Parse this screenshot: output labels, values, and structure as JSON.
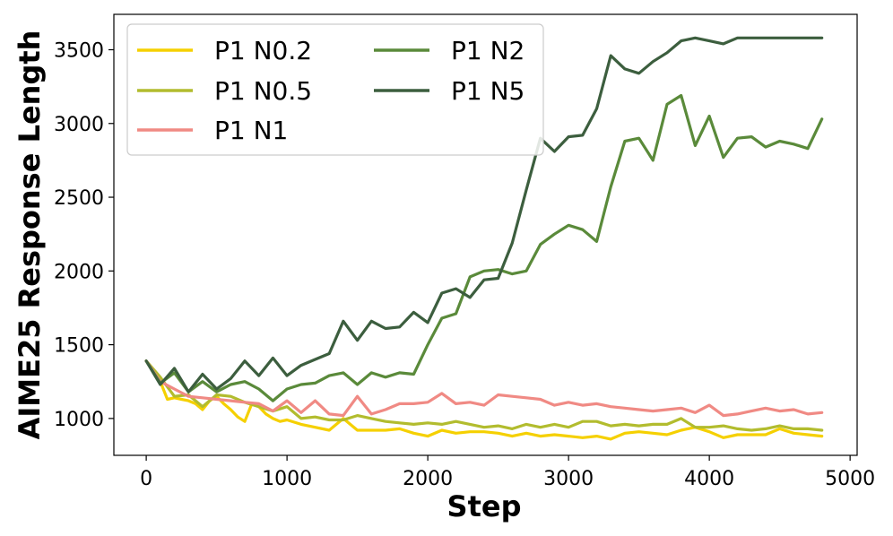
{
  "chart_data": {
    "type": "line",
    "xlabel": "Step",
    "ylabel": "AIME25 Response Length",
    "xlim": [
      -230,
      5050
    ],
    "ylim": [
      750,
      3740
    ],
    "xticks": [
      0,
      1000,
      2000,
      3000,
      4000,
      5000
    ],
    "yticks": [
      1000,
      1500,
      2000,
      2500,
      3000,
      3500
    ],
    "grid": false,
    "legend_position": "top-left",
    "legend_columns": 2,
    "series": [
      {
        "name": "P1 N0.2",
        "color": "#f5d000",
        "x": [
          0,
          50,
          100,
          150,
          200,
          250,
          300,
          350,
          400,
          450,
          500,
          550,
          600,
          650,
          700,
          750,
          800,
          850,
          900,
          950,
          1000,
          1100,
          1200,
          1300,
          1400,
          1500,
          1600,
          1700,
          1800,
          1900,
          2000,
          2100,
          2200,
          2300,
          2400,
          2500,
          2600,
          2700,
          2800,
          2900,
          3000,
          3100,
          3200,
          3300,
          3400,
          3500,
          3600,
          3700,
          3800,
          3900,
          4000,
          4100,
          4200,
          4300,
          4400,
          4500,
          4600,
          4700,
          4800
        ],
        "y": [
          1390,
          1320,
          1250,
          1130,
          1140,
          1130,
          1120,
          1100,
          1060,
          1120,
          1150,
          1100,
          1060,
          1010,
          980,
          1100,
          1080,
          1030,
          1000,
          980,
          990,
          960,
          940,
          920,
          1000,
          920,
          920,
          920,
          930,
          900,
          880,
          920,
          900,
          910,
          910,
          900,
          880,
          900,
          880,
          890,
          880,
          870,
          880,
          860,
          900,
          910,
          900,
          890,
          920,
          940,
          910,
          870,
          890,
          890,
          890,
          930,
          900,
          890,
          880
        ]
      },
      {
        "name": "P1 N0.5",
        "color": "#b2bc2e",
        "x": [
          0,
          100,
          200,
          300,
          400,
          500,
          600,
          700,
          800,
          900,
          1000,
          1100,
          1200,
          1300,
          1400,
          1500,
          1600,
          1700,
          1800,
          1900,
          2000,
          2100,
          2200,
          2300,
          2400,
          2500,
          2600,
          2700,
          2800,
          2900,
          3000,
          3100,
          3200,
          3300,
          3400,
          3500,
          3600,
          3700,
          3800,
          3900,
          4000,
          4100,
          4200,
          4300,
          4400,
          4500,
          4600,
          4700,
          4800
        ],
        "y": [
          1390,
          1280,
          1150,
          1160,
          1080,
          1160,
          1150,
          1110,
          1080,
          1050,
          1080,
          1000,
          1010,
          990,
          990,
          1020,
          1000,
          980,
          970,
          960,
          970,
          960,
          980,
          960,
          940,
          950,
          930,
          960,
          940,
          960,
          940,
          980,
          980,
          950,
          960,
          950,
          960,
          960,
          1000,
          940,
          940,
          950,
          930,
          920,
          930,
          950,
          930,
          930,
          920
        ]
      },
      {
        "name": "P1 N1",
        "color": "#f08a84",
        "x": [
          0,
          100,
          200,
          300,
          400,
          500,
          600,
          700,
          800,
          900,
          1000,
          1100,
          1200,
          1300,
          1400,
          1500,
          1600,
          1700,
          1800,
          1900,
          2000,
          2100,
          2200,
          2300,
          2400,
          2500,
          2600,
          2700,
          2800,
          2900,
          3000,
          3100,
          3200,
          3300,
          3400,
          3500,
          3600,
          3700,
          3800,
          3900,
          4000,
          4100,
          4200,
          4300,
          4400,
          4500,
          4600,
          4700,
          4800
        ],
        "y": [
          1390,
          1250,
          1200,
          1150,
          1140,
          1130,
          1120,
          1110,
          1100,
          1050,
          1120,
          1040,
          1120,
          1030,
          1020,
          1150,
          1030,
          1060,
          1100,
          1100,
          1110,
          1170,
          1100,
          1110,
          1090,
          1160,
          1150,
          1140,
          1130,
          1090,
          1110,
          1090,
          1100,
          1080,
          1070,
          1060,
          1050,
          1060,
          1070,
          1040,
          1090,
          1020,
          1030,
          1050,
          1070,
          1050,
          1060,
          1030,
          1040
        ]
      },
      {
        "name": "P1 N2",
        "color": "#5a8a3a",
        "x": [
          0,
          100,
          200,
          300,
          400,
          500,
          600,
          700,
          800,
          900,
          1000,
          1100,
          1200,
          1300,
          1400,
          1500,
          1600,
          1700,
          1800,
          1900,
          2000,
          2100,
          2200,
          2300,
          2400,
          2500,
          2600,
          2700,
          2800,
          2900,
          3000,
          3100,
          3200,
          3300,
          3400,
          3500,
          3600,
          3700,
          3800,
          3900,
          4000,
          4100,
          4200,
          4300,
          4400,
          4500,
          4600,
          4700,
          4800
        ],
        "y": [
          1390,
          1240,
          1310,
          1180,
          1250,
          1180,
          1230,
          1250,
          1200,
          1120,
          1200,
          1230,
          1240,
          1290,
          1310,
          1230,
          1310,
          1280,
          1310,
          1300,
          1500,
          1680,
          1710,
          1960,
          2000,
          2010,
          1980,
          2000,
          2180,
          2250,
          2310,
          2280,
          2200,
          2570,
          2880,
          2900,
          2750,
          3130,
          3190,
          2850,
          3050,
          2770,
          2900,
          2910,
          2840,
          2880,
          2860,
          2830,
          3030
        ]
      },
      {
        "name": "P1 N5",
        "color": "#3c5e3e",
        "x": [
          0,
          100,
          200,
          300,
          400,
          500,
          600,
          700,
          800,
          900,
          1000,
          1100,
          1200,
          1300,
          1400,
          1500,
          1600,
          1700,
          1800,
          1900,
          2000,
          2100,
          2200,
          2300,
          2400,
          2500,
          2600,
          2700,
          2800,
          2900,
          3000,
          3100,
          3200,
          3300,
          3400,
          3500,
          3600,
          3700,
          3800,
          3900,
          4000,
          4100,
          4200,
          4300,
          4400,
          4500,
          4600,
          4700,
          4800
        ],
        "y": [
          1390,
          1230,
          1340,
          1180,
          1300,
          1200,
          1270,
          1390,
          1290,
          1410,
          1290,
          1360,
          1400,
          1440,
          1660,
          1530,
          1660,
          1610,
          1620,
          1720,
          1650,
          1850,
          1880,
          1820,
          1940,
          1950,
          2190,
          2550,
          2900,
          2810,
          2910,
          2920,
          3100,
          3460,
          3370,
          3340,
          3420,
          3480,
          3560,
          3580,
          3560,
          3540,
          3580,
          3580,
          3580,
          3580,
          3580,
          3580,
          3580
        ]
      }
    ]
  }
}
